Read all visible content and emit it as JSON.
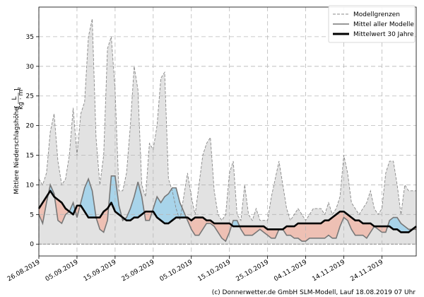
{
  "chart_data": {
    "type": "area",
    "ylabel": "Mittlere Niederschlagshöhe [L/(kg·m²)]",
    "ylabel_parts": {
      "text": "Mittlere Niederschlagshöhe",
      "unit_num": "L",
      "unit_den": "kg · m²"
    },
    "ylim": [
      -2,
      40
    ],
    "yticks": [
      0,
      5,
      10,
      15,
      20,
      25,
      30,
      35
    ],
    "xlim": [
      0,
      99
    ],
    "xticks": [
      {
        "day": 0,
        "label": "26.08.2019"
      },
      {
        "day": 10,
        "label": "05.09.2019"
      },
      {
        "day": 20,
        "label": "15.09.2019"
      },
      {
        "day": 30,
        "label": "25.09.2019"
      },
      {
        "day": 40,
        "label": "05.10.2019"
      },
      {
        "day": 50,
        "label": "15.10.2019"
      },
      {
        "day": 60,
        "label": "25.10.2019"
      },
      {
        "day": 70,
        "label": "04.11.2019"
      },
      {
        "day": 80,
        "label": "14.11.2019"
      },
      {
        "day": 90,
        "label": "24.11.2019"
      }
    ],
    "grid": true,
    "legend_position": "top-right",
    "series": [
      {
        "name": "Modellgrenzen",
        "style": "dashed",
        "color": "#888888",
        "upper": [
          11,
          10,
          12,
          19,
          22,
          14,
          10,
          11,
          15,
          23,
          15,
          22,
          24,
          35,
          38,
          18,
          10,
          15,
          33,
          35,
          26,
          9,
          9,
          12,
          20,
          30,
          26,
          10,
          8,
          17,
          16,
          20,
          28,
          29,
          11,
          9,
          6,
          4,
          8,
          12,
          8,
          5,
          10,
          15,
          17,
          18,
          9,
          5,
          4,
          5,
          12,
          14,
          5,
          4,
          10,
          5,
          4,
          6,
          4,
          4,
          4,
          8,
          11,
          14,
          10,
          6,
          4,
          5,
          6,
          5,
          4,
          5,
          6,
          6,
          6,
          5,
          7,
          5,
          6,
          8,
          15,
          12,
          7,
          6,
          5,
          6,
          7,
          9,
          6,
          5,
          6,
          12,
          14,
          14,
          10,
          5,
          10,
          9,
          9,
          9
        ],
        "lower": [
          0,
          0,
          0,
          0,
          0,
          0,
          0,
          0,
          0,
          0,
          0,
          0,
          0,
          0,
          0,
          0,
          0,
          0,
          0,
          0,
          0,
          0,
          0,
          0,
          0,
          0,
          0,
          0,
          0,
          0,
          0,
          0,
          0,
          0,
          0,
          0,
          0,
          0,
          0,
          0,
          0,
          0,
          0,
          0,
          0,
          0,
          0,
          0,
          0,
          0,
          0,
          0,
          0,
          0,
          0,
          0,
          0,
          0,
          0,
          0,
          0,
          0,
          0,
          0,
          0,
          0,
          0,
          0,
          0,
          0,
          0,
          0,
          0,
          0,
          0,
          0,
          0,
          0,
          0,
          0,
          0,
          0,
          0,
          0,
          0,
          0,
          0,
          0,
          0,
          0,
          0,
          0,
          0,
          0,
          0,
          0,
          0,
          0,
          0,
          0
        ]
      },
      {
        "name": "Mittel aller Modelle",
        "style": "solid",
        "color": "#777777",
        "values": [
          5,
          3.5,
          7,
          10,
          8.5,
          4,
          3.5,
          5,
          5.5,
          7,
          4.5,
          7,
          9.5,
          11,
          9,
          4.5,
          2.5,
          2,
          4,
          11.5,
          11.5,
          6.5,
          4,
          4.5,
          6,
          8,
          10.5,
          8,
          4,
          4,
          6,
          8,
          7,
          8,
          8.5,
          9.5,
          9.5,
          7,
          5.5,
          4,
          2.5,
          1.5,
          1.5,
          2.5,
          3.5,
          3.5,
          3,
          2,
          1,
          0.5,
          2,
          4,
          4,
          2.5,
          1.5,
          1.5,
          1.5,
          2,
          2.5,
          2,
          1.5,
          1,
          1,
          2.5,
          2.5,
          1.5,
          1.5,
          1,
          1,
          0.5,
          0.5,
          1,
          1,
          1,
          1,
          1,
          1.5,
          1,
          1,
          3,
          4.5,
          4,
          2.5,
          1.5,
          1.5,
          1.5,
          1,
          2,
          3,
          2.5,
          2,
          2,
          4,
          4.5,
          4.5,
          3.5,
          3,
          2.5,
          2.5,
          2.5
        ]
      },
      {
        "name": "Mittelwert 30 Jahre",
        "style": "solid-bold",
        "color": "#000000",
        "values": [
          6,
          7,
          8,
          9,
          8,
          7.5,
          7,
          6,
          5.5,
          5,
          6.5,
          6.5,
          5.5,
          4.5,
          4.5,
          4.5,
          4.5,
          5.5,
          6,
          7,
          5.5,
          5,
          4.5,
          4,
          4,
          4.5,
          4.5,
          5,
          5.5,
          5.5,
          5.5,
          4.5,
          4,
          3.5,
          3.5,
          4,
          4.5,
          4.5,
          4.5,
          4.5,
          4,
          4.5,
          4.5,
          4.5,
          4,
          4,
          3.5,
          3.5,
          3.5,
          3.5,
          3.5,
          3,
          3,
          3,
          3,
          3,
          3,
          3,
          3,
          3,
          2.5,
          2.5,
          2.5,
          2.5,
          2.5,
          3,
          3,
          3,
          3.5,
          3.5,
          3.5,
          3.5,
          3.5,
          3.5,
          3.5,
          4,
          4,
          4.5,
          5,
          5.5,
          5.5,
          5,
          4.5,
          4,
          4,
          3.5,
          3.5,
          3.5,
          3,
          3,
          3,
          3,
          3,
          2.5,
          2.5,
          2,
          2,
          2,
          2.5,
          3
        ]
      }
    ],
    "fill_colors": {
      "above_normal": "#a8d4ea",
      "below_normal": "#eec0b4",
      "range": "#e2e2e2"
    }
  },
  "legend": {
    "items": [
      {
        "label": "Modellgrenzen"
      },
      {
        "label": "Mittel aller Modelle"
      },
      {
        "label": "Mittelwert 30 Jahre"
      }
    ]
  },
  "credit": "(c) Donnerwetter.de GmbH SLM-Modell, Lauf 18.08.2019 07 Uhr"
}
